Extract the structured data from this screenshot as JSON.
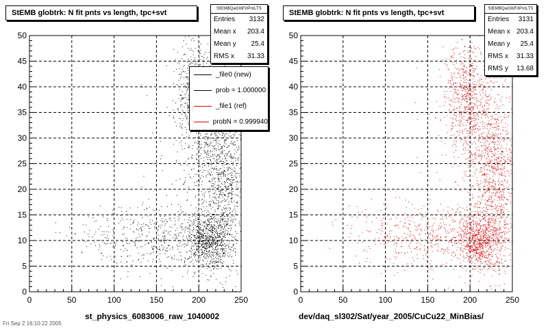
{
  "colors": {
    "file0": "#000000",
    "file1": "#dd0000"
  },
  "chart_data": [
    {
      "type": "scatter",
      "title": "StEMB globtrk: N fit pnts vs length, tpc+svt",
      "xlabel": "st_physics_6083006_raw_1040002",
      "ylabel": "",
      "xlim": [
        0,
        250
      ],
      "ylim": [
        0,
        50
      ],
      "xticks": [
        0,
        50,
        100,
        150,
        200,
        250
      ],
      "yticks": [
        0,
        5,
        10,
        15,
        20,
        25,
        30,
        35,
        40,
        45,
        50
      ],
      "grid": true,
      "point_color": "#000000",
      "stats": {
        "name": "StEMBQaGlbFitPntLTS",
        "rows": [
          {
            "label": "Entries",
            "value": "3132"
          },
          {
            "label": "Mean x",
            "value": "203.4"
          },
          {
            "label": "Mean y",
            "value": "25.4"
          },
          {
            "label": "RMS x",
            "value": "31.33"
          }
        ]
      },
      "legend": {
        "placement": "top-right",
        "entries": [
          {
            "label": "_file0 (new)",
            "color": "#000000"
          },
          {
            "label": "prob = 1.000000",
            "color": "#000000"
          },
          {
            "label": "_file1 (ref)",
            "color": "#dd0000"
          },
          {
            "label": "probN = 0.999940",
            "color": "#dd0000"
          }
        ]
      },
      "clusters": [
        {
          "cx": 210,
          "cy": 10,
          "sx": 12,
          "sy": 2.5,
          "n": 700
        },
        {
          "cx": 195,
          "cy": 38,
          "sx": 12,
          "sy": 5,
          "n": 600
        },
        {
          "cx": 225,
          "cy": 25,
          "sx": 16,
          "sy": 9,
          "n": 800
        },
        {
          "cx": 150,
          "cy": 11,
          "sx": 45,
          "sy": 3,
          "n": 500
        },
        {
          "cx": 232,
          "cy": 18,
          "sx": 10,
          "sy": 8,
          "n": 350
        },
        {
          "cx": 200,
          "cy": 25,
          "sx": 30,
          "sy": 13,
          "n": 182
        }
      ]
    },
    {
      "type": "scatter",
      "title": "StEMB globtrk: N fit pnts vs length, tpc+svt",
      "xlabel": "dev/daq_sl302/Sat/year_2005/CuCu22_MinBias/",
      "ylabel": "",
      "xlim": [
        0,
        250
      ],
      "ylim": [
        0,
        50
      ],
      "xticks": [
        0,
        50,
        100,
        150,
        200,
        250
      ],
      "yticks": [
        0,
        5,
        10,
        15,
        20,
        25,
        30,
        35,
        40,
        45,
        50
      ],
      "grid": true,
      "point_color": "#dd0000",
      "stats": {
        "name": "StEMBQaGlbFitPntLTS",
        "rows": [
          {
            "label": "Entries",
            "value": "3131"
          },
          {
            "label": "Mean x",
            "value": "203.4"
          },
          {
            "label": "Mean y",
            "value": "25.4"
          },
          {
            "label": "RMS x",
            "value": "31.33"
          },
          {
            "label": "RMS y",
            "value": "13.68"
          }
        ]
      },
      "clusters": [
        {
          "cx": 210,
          "cy": 10,
          "sx": 12,
          "sy": 2.5,
          "n": 700
        },
        {
          "cx": 195,
          "cy": 38,
          "sx": 12,
          "sy": 5,
          "n": 600
        },
        {
          "cx": 225,
          "cy": 25,
          "sx": 16,
          "sy": 9,
          "n": 800
        },
        {
          "cx": 150,
          "cy": 11,
          "sx": 45,
          "sy": 3,
          "n": 500
        },
        {
          "cx": 232,
          "cy": 18,
          "sx": 10,
          "sy": 8,
          "n": 350
        },
        {
          "cx": 200,
          "cy": 25,
          "sx": 30,
          "sy": 13,
          "n": 181
        }
      ]
    }
  ],
  "footer": {
    "left_text": "Fri Sep 2 16:10:22 2005"
  }
}
